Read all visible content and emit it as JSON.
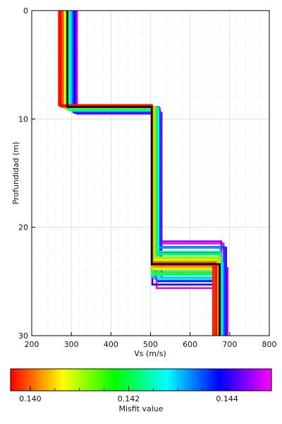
{
  "chart_data": {
    "type": "line",
    "xlabel": "Vs (m/s)",
    "ylabel": "Profundidad (m)",
    "xlim": [
      200,
      800
    ],
    "ylim": [
      0,
      30
    ],
    "y_inverted": true,
    "xticks": [
      200,
      300,
      400,
      500,
      600,
      700,
      800
    ],
    "yticks": [
      0,
      10,
      20,
      30
    ],
    "grid": true,
    "best_model": {
      "misfit": 0.1396,
      "color": "#000000",
      "layers": [
        {
          "top": 0,
          "bottom": 8.9,
          "vs": 290
        },
        {
          "top": 8.9,
          "bottom": 23.4,
          "vs": 503
        },
        {
          "top": 23.4,
          "bottom": 30,
          "vs": 675
        }
      ]
    },
    "colorbar": {
      "label": "Misfit value",
      "range": [
        0.1396,
        0.1449
      ],
      "ticks": [
        0.14,
        0.142,
        0.144
      ],
      "tick_labels": [
        "0.140",
        "0.142",
        "0.144"
      ],
      "colors": [
        "#ff0000",
        "#ffff00",
        "#00ff00",
        "#00ffff",
        "#0000ff",
        "#ff00ff"
      ]
    },
    "series_style": "ensemble of 3-layer step velocity profiles colored by misfit value"
  }
}
